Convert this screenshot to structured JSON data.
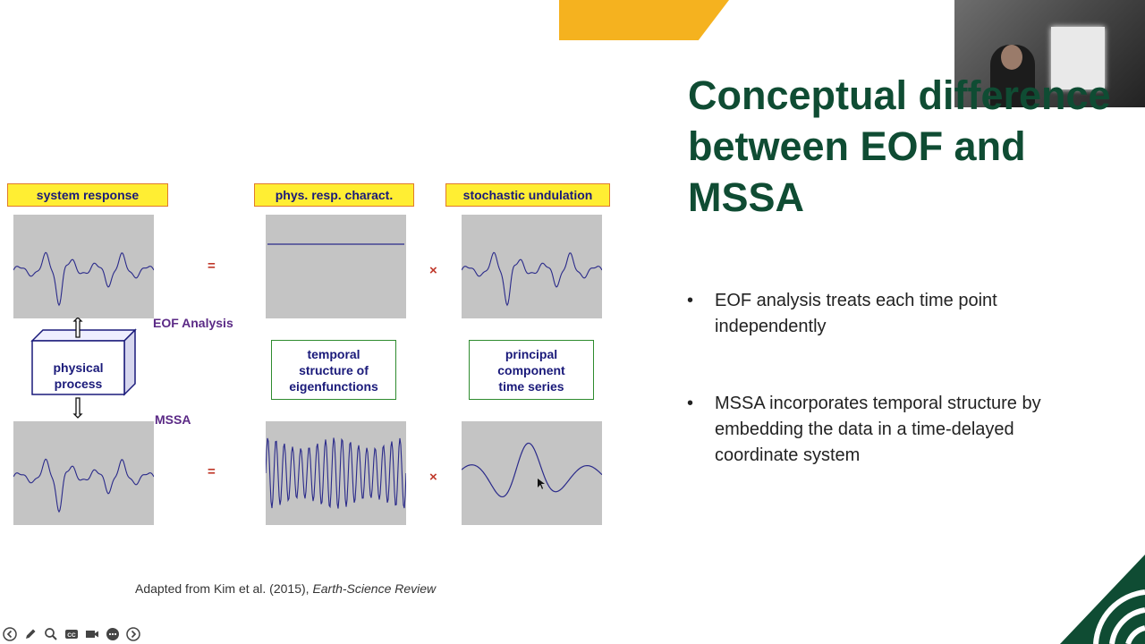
{
  "slide": {
    "title": "Conceptual difference between EOF and MSSA",
    "bullets": [
      "EOF analysis treats each time point independently",
      "MSSA incorporates temporal structure by embedding the data in a time-delayed coordinate system"
    ],
    "credit_prefix": "Adapted from Kim et al. (2015), ",
    "credit_journal": "Earth-Science Review"
  },
  "figure": {
    "labels": {
      "system_response": "system response",
      "phys_resp": "phys. resp. charact.",
      "stochastic": "stochastic undulation"
    },
    "equals": "=",
    "times": "×",
    "eof_analysis": "EOF Analysis",
    "mssa": "MSSA",
    "physical_process": [
      "physical",
      "process"
    ],
    "temporal_structure": [
      "temporal",
      "structure of",
      "eigenfunctions"
    ],
    "principal_component": [
      "principal",
      "component",
      "time series"
    ]
  },
  "colors": {
    "title": "#0f4c33",
    "accent": "#f5b21f",
    "wave": "#2a2a8a"
  },
  "toolbar_icons": [
    "back-icon",
    "pen-icon",
    "zoom-icon",
    "captions-icon",
    "camera-icon",
    "more-icon",
    "forward-icon"
  ]
}
